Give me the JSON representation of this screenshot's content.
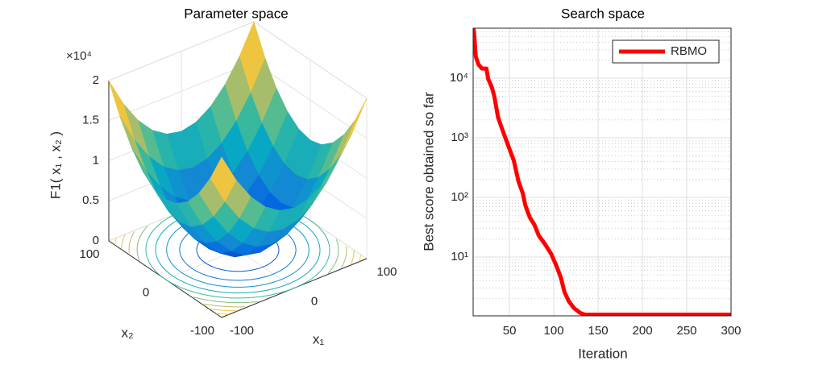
{
  "chart_data": [
    {
      "type": "surface3d",
      "title": "Parameter space",
      "x": [
        -100,
        -80,
        -60,
        -40,
        -20,
        0,
        20,
        40,
        60,
        80,
        100
      ],
      "y": [
        -100,
        -80,
        -60,
        -40,
        -20,
        0,
        20,
        40,
        60,
        80,
        100
      ],
      "z": [
        [
          20000,
          16400,
          13600,
          11600,
          10400,
          10000,
          10400,
          11600,
          13600,
          16400,
          20000
        ],
        [
          16400,
          12800,
          10000,
          8000,
          6800,
          6400,
          6800,
          8000,
          10000,
          12800,
          16400
        ],
        [
          13600,
          10000,
          7200,
          5200,
          4000,
          3600,
          4000,
          5200,
          7200,
          10000,
          13600
        ],
        [
          11600,
          8000,
          5200,
          3200,
          2000,
          1600,
          2000,
          3200,
          5200,
          8000,
          11600
        ],
        [
          10400,
          6800,
          4000,
          2000,
          800,
          400,
          800,
          2000,
          4000,
          6800,
          10400
        ],
        [
          10000,
          6400,
          3600,
          1600,
          400,
          0,
          400,
          1600,
          3600,
          6400,
          10000
        ],
        [
          10400,
          6800,
          4000,
          2000,
          800,
          400,
          800,
          2000,
          4000,
          6800,
          10400
        ],
        [
          11600,
          8000,
          5200,
          3200,
          2000,
          1600,
          2000,
          3200,
          5200,
          8000,
          11600
        ],
        [
          13600,
          10000,
          7200,
          5200,
          4000,
          3600,
          4000,
          5200,
          7200,
          10000,
          13600
        ],
        [
          16400,
          12800,
          10000,
          8000,
          6800,
          6400,
          6800,
          8000,
          10000,
          12800,
          16400
        ],
        [
          20000,
          16400,
          13600,
          11600,
          10400,
          10000,
          10400,
          11600,
          13600,
          16400,
          20000
        ]
      ],
      "contour_levels": [
        2000,
        4000,
        6000,
        8000,
        10000,
        12000,
        14000,
        16000,
        18000
      ],
      "xlabel": "x₁",
      "ylabel": "x₂",
      "zlabel": "F1( x₁ , x₂ )",
      "z_multiplier": "×10⁴",
      "xlim": [
        -100,
        100
      ],
      "ylim": [
        -100,
        100
      ],
      "zlim": [
        0,
        20000
      ],
      "xticks": [
        -100,
        0,
        100
      ],
      "yticks": [
        -100,
        0,
        100
      ],
      "zticks": [
        0,
        {
          "value": 5000,
          "label": "0.5"
        },
        {
          "value": 10000,
          "label": "1"
        },
        {
          "value": 15000,
          "label": "1.5"
        },
        {
          "value": 20000,
          "label": "2"
        }
      ],
      "colormap": [
        "#352a87",
        "#0363e1",
        "#1485d4",
        "#06a7c6",
        "#38b99e",
        "#92bf73",
        "#d9ba56",
        "#fcce2e",
        "#f9fb0e"
      ],
      "grid": true
    },
    {
      "type": "line",
      "title": "Search space",
      "xlabel": "Iteration",
      "ylabel": "Best score obtained so far",
      "x": [
        8,
        10,
        12,
        15,
        19,
        24,
        26,
        30,
        33,
        37,
        41,
        45,
        50,
        55,
        57,
        60,
        65,
        68,
        73,
        78,
        83,
        90,
        97,
        103,
        108,
        112,
        117,
        123,
        130,
        135,
        300
      ],
      "series": [
        {
          "name": "RBMO",
          "color": "#ff0000",
          "values": [
            90000,
            59000,
            23000,
            17000,
            14500,
            14500,
            9700,
            7100,
            4900,
            2240,
            1500,
            1030,
            650,
            410,
            300,
            190,
            117,
            73,
            46,
            35,
            23,
            16.5,
            11.3,
            7.1,
            4.5,
            2.6,
            1.8,
            1.38,
            1.15,
            1.08,
            1.08
          ]
        }
      ],
      "xlim": [
        9,
        300
      ],
      "ylim": [
        1.03,
        69000
      ],
      "yscale": "log",
      "xticks": [
        50,
        100,
        150,
        200,
        250,
        300
      ],
      "yticks": [
        {
          "value": 10,
          "label": "10¹"
        },
        {
          "value": 100,
          "label": "10²"
        },
        {
          "value": 1000,
          "label": "10³"
        },
        {
          "value": 10000,
          "label": "10⁴"
        }
      ],
      "grid": true,
      "minor_grid": true,
      "legend": "northeast"
    }
  ]
}
